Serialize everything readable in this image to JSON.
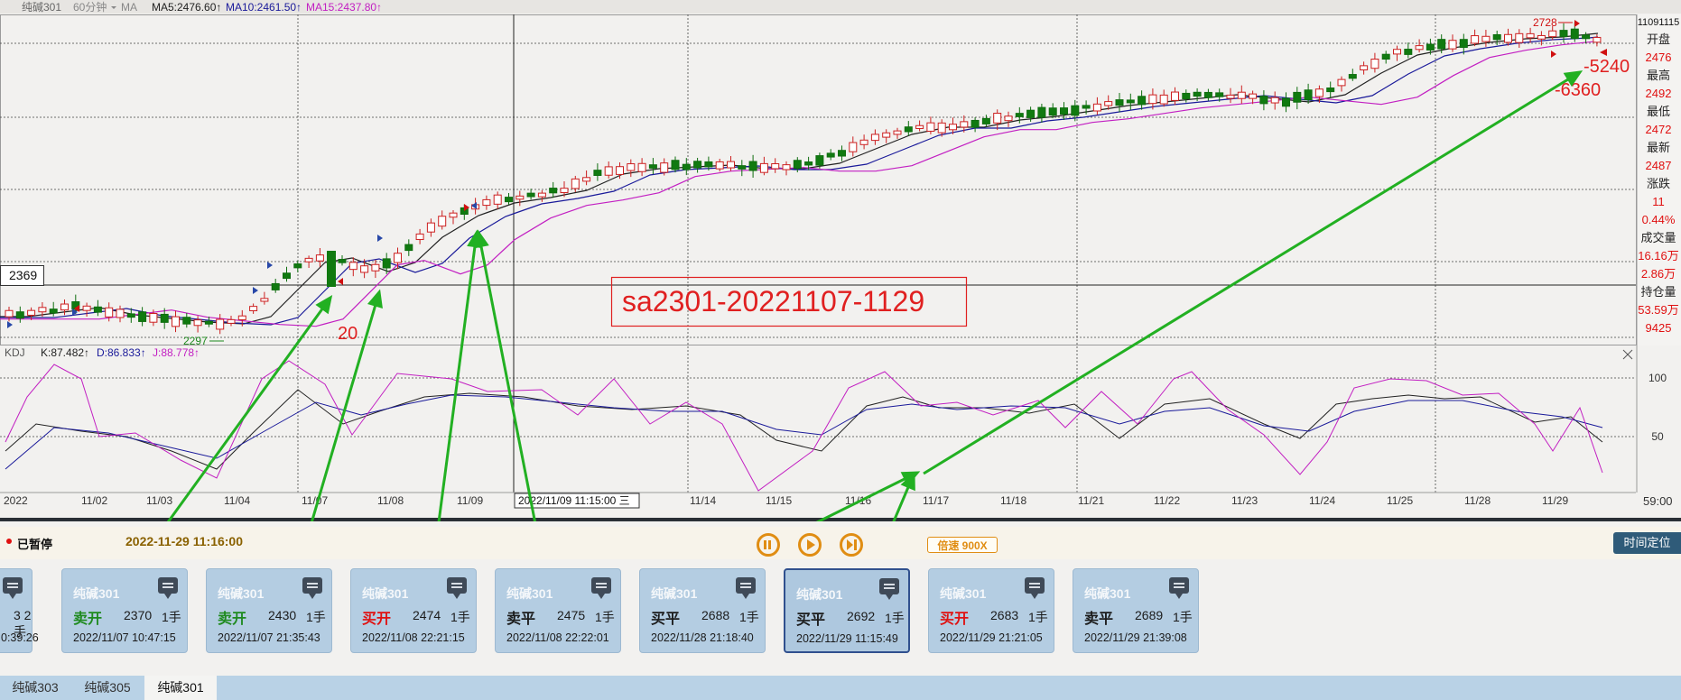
{
  "header": {
    "symbol": "纯碱301",
    "period": "60分钟",
    "indicator": "MA",
    "ma5": "MA5:2476.60↑",
    "ma10": "MA10:2461.50↑",
    "ma15": "MA15:2437.80↑"
  },
  "price_labels": {
    "current_box": "2369",
    "low_marker": "2297",
    "high_marker": "2728",
    "left_number": "20",
    "profit1": "-5240",
    "profit2": "-6360",
    "watermark": "sa2301-20221107-1129"
  },
  "side_panel": [
    {
      "label": "11091115",
      "value": ""
    },
    {
      "label": "开盘",
      "value": "2476"
    },
    {
      "label": "最高",
      "value": "2492"
    },
    {
      "label": "最低",
      "value": "2472"
    },
    {
      "label": "最新",
      "value": "2487"
    },
    {
      "label": "涨跌",
      "value": "11"
    },
    {
      "label": "",
      "value": "0.44%"
    },
    {
      "label": "成交量",
      "value": "16.16万"
    },
    {
      "label": "",
      "value": "2.86万"
    },
    {
      "label": "持仓量",
      "value": "53.59万"
    },
    {
      "label": "",
      "value": "9425"
    }
  ],
  "kdj": {
    "name": "KDJ",
    "k": "K:87.482↑",
    "d": "D:86.833↑",
    "j": "J:88.778↑",
    "level_100": "100",
    "level_50": "50"
  },
  "x_axis": {
    "labels": [
      "2022",
      "11/02",
      "11/03",
      "11/04",
      "11/07",
      "11/08",
      "11/09",
      "11/14",
      "11/15",
      "11/16",
      "11/17",
      "11/18",
      "11/21",
      "11/22",
      "11/23",
      "11/24",
      "11/25",
      "11/28",
      "11/29"
    ],
    "cursor_label": "2022/11/09 11:15:00 三",
    "right_time": "59:00"
  },
  "playbar": {
    "status": "已暂停",
    "datetime": "2022-11-29 11:16:00",
    "speed": "倍速 900X",
    "locate_button": "时间定位"
  },
  "partial_card": {
    "price_lots": "3  2手",
    "time": "0:39:26"
  },
  "trades": [
    {
      "name": "纯碱301",
      "action": "卖开",
      "color": "#1f8a1f",
      "price": "2370",
      "lots": "1手",
      "time": "2022/11/07 10:47:15",
      "selected": false
    },
    {
      "name": "纯碱301",
      "action": "卖开",
      "color": "#1f8a1f",
      "price": "2430",
      "lots": "1手",
      "time": "2022/11/07 21:35:43",
      "selected": false
    },
    {
      "name": "纯碱301",
      "action": "买开",
      "color": "#e01010",
      "price": "2474",
      "lots": "1手",
      "time": "2022/11/08 22:21:15",
      "selected": false
    },
    {
      "name": "纯碱301",
      "action": "卖平",
      "color": "#1b1b1b",
      "price": "2475",
      "lots": "1手",
      "time": "2022/11/08 22:22:01",
      "selected": false
    },
    {
      "name": "纯碱301",
      "action": "买平",
      "color": "#1b1b1b",
      "price": "2688",
      "lots": "1手",
      "time": "2022/11/28 21:18:40",
      "selected": false
    },
    {
      "name": "纯碱301",
      "action": "买平",
      "color": "#1b1b1b",
      "price": "2692",
      "lots": "1手",
      "time": "2022/11/29 11:15:49",
      "selected": true
    },
    {
      "name": "纯碱301",
      "action": "买开",
      "color": "#e01010",
      "price": "2683",
      "lots": "1手",
      "time": "2022/11/29 21:21:05",
      "selected": false
    },
    {
      "name": "纯碱301",
      "action": "卖平",
      "color": "#1b1b1b",
      "price": "2689",
      "lots": "1手",
      "time": "2022/11/29 21:39:08",
      "selected": false
    }
  ],
  "tabs": [
    {
      "label": "纯碱303",
      "active": false
    },
    {
      "label": "纯碱305",
      "active": false
    },
    {
      "label": "纯碱301",
      "active": true
    }
  ]
}
